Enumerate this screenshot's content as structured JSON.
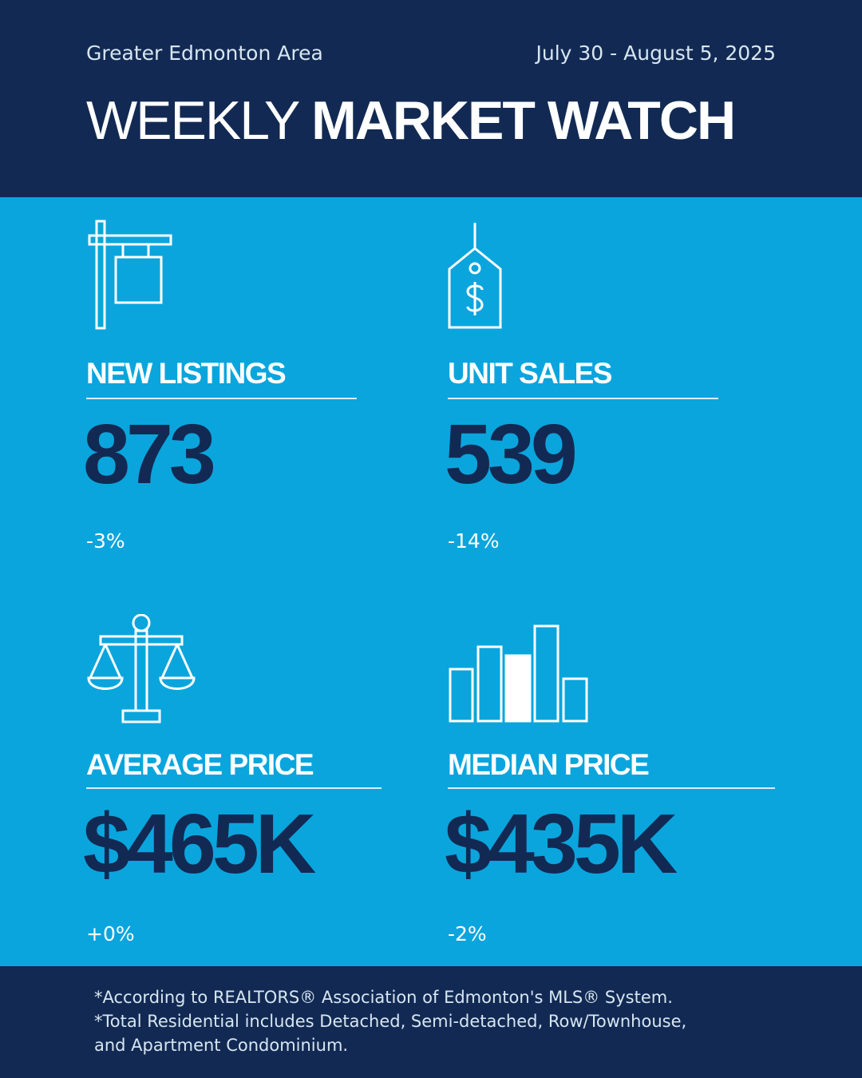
{
  "header": {
    "region": "Greater Edmonton Area",
    "date_range": "July 30 - August 5, 2025",
    "title_light": "WEEKLY",
    "title_bold": "MARKET WATCH"
  },
  "stats": {
    "new_listings": {
      "label": "NEW LISTINGS",
      "value": "873",
      "change": "-3%",
      "icon": "for-sale-sign-icon"
    },
    "unit_sales": {
      "label": "UNIT SALES",
      "value": "539",
      "change": "-14%",
      "icon": "price-tag-icon"
    },
    "average_price": {
      "label": "AVERAGE PRICE",
      "value": "$465K",
      "change": "+0%",
      "icon": "scales-icon"
    },
    "median_price": {
      "label": "MEDIAN PRICE",
      "value": "$435K",
      "change": "-2%",
      "icon": "bar-chart-icon"
    }
  },
  "footer": {
    "line1": "*According to REALTORS® Association of Edmonton's MLS® System.",
    "line2": "*Total Residential includes Detached, Semi-detached, Row/Townhouse,",
    "line3": "and Apartment Condominium."
  },
  "colors": {
    "navy": "#122a53",
    "sky_blue": "#0aa5dd",
    "white": "#ffffff"
  }
}
